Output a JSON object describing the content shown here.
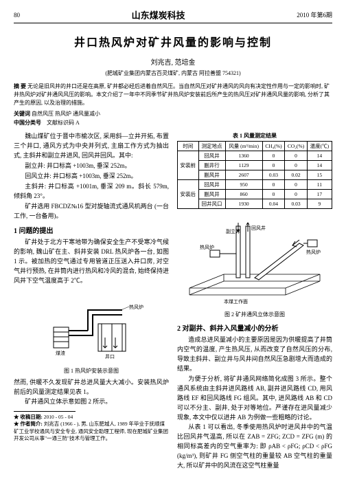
{
  "header": {
    "page": "80",
    "journal": "山东煤炭科技",
    "issue": "2010 年第6期"
  },
  "title": "井口热风炉对矿井风量的影响与控制",
  "authors": "刘兆吉, 范培金",
  "affiliation": "(肥城矿业集团内蒙古百灵煤矿, 内蒙古 阿拉善盟  754321)",
  "abstract_label": "摘  要",
  "abstract": "无论是旧风井的井口还是在高原, 矿井都必经后进着自然风压。当自然风压对矿井通风的风向有决定性作用与一定的影响时, 矿井热风炉对矿井通风风压的影响。本文介绍了一年中不同季节矿井热风炉安装前后所产生的热风压对矿井通风风量的影响, 分析了其产生的原因, 以及治理的措施。",
  "keywords_label": "关键词",
  "keywords": "自然风压   热风炉   通风量减小",
  "class_label": "中国分类号",
  "class_code": "文献标识码  A",
  "left": {
    "p1": "魏山煤矿位于晋中市榆次区, 采用斜—立井开拓, 布置三个井口, 通风方式为中央并列式, 主扇工作方式为抽出式, 主斜井和副立井进风, 回风井回风。其中:",
    "p2": "副立井: 井口标高 +1003m, 垂深 252m。",
    "p3": "回风立井: 井口标高 +1003m, 垂深 252m。",
    "p4": "主斜井: 井口标高 +1001m, 垂深 209 m。斜长 579m, 倾斜角 23°。",
    "p5": "矿井选用 FBCDZ№16 型对旋轴流式通风机两台 (一台工作, 一台备用)。",
    "h1": "1 问题的提出",
    "p6": "矿井处于北方干寒地带为确保安全生产不受寒冷气候的影响, 魏山矿在主、斜井安装 DRL 热风炉各一台, 如图 1 示。被加热的空气通过专用管道正压送入井口房, 对空气井行预热, 在井筒内进行热风和冷风的混合, 始终保持进风井下空气温度高于 2℃。",
    "fig1_caption": "图 1  热风炉安装示意图",
    "p7": "然而, 供暖不久发现矿井总进风量大大减小。安装热风炉前后的风量测定结果见表 1。",
    "p8": "矿井通风立体示意如图 2 所示。",
    "footnote_date_label": "★ 收稿日期:",
    "footnote_date": "2010 - 05 - 04",
    "footnote_author_label": "★ 作者简介:",
    "footnote_author": "刘兆吉 (1966 - ), 男, 山东肥城人, 1989 年毕业于抚顺煤矿工业学校通风与安全专业, 通风安全助理工程师, 现在肥城矿业集团开发公司从事\"一通三防\"技术与管理工作。"
  },
  "right": {
    "table_caption": "表 1  风量测定结果",
    "table": {
      "headers": [
        "时间",
        "测定地点",
        "风量 (m³/min)",
        "CH₄(%)",
        "CO₂(%)",
        "温度(℃)"
      ],
      "rows": [
        [
          "安装前",
          "回风井",
          "1360",
          "0",
          "0",
          "14"
        ],
        [
          "",
          "副井行",
          "1129",
          "0",
          "0",
          "14"
        ],
        [
          "",
          "副风井",
          "2607",
          "0.03",
          "0.02",
          "15"
        ],
        [
          "安装后",
          "回风井",
          "950",
          "0",
          "0",
          "11"
        ],
        [
          "",
          "副风井",
          "860",
          "0",
          "0",
          "17"
        ],
        [
          "",
          "回井风口",
          "1930",
          "0.04",
          "0.03",
          "9"
        ]
      ]
    },
    "fig2_caption": "图 2  矿井通风立体示意图",
    "fig2_labels": {
      "l1": "热风炉",
      "l2": "副立井",
      "l3": "回风井",
      "l4": "热风炉",
      "l5": "本煤工作面"
    },
    "h2": "2  对副井、斜井入风量减小的分析",
    "p1": "造成总进风量减小的主要原因是因为供暖提高了井筒内空气的温度, 产生热风压, 从而改变了自然风压的分布, 导致主斜井、副立井与风井间自然风压急剧增大而造成的结果。",
    "p2": "为便于分析, 将矿井通风网络简化成图 3 所示。整个通风系统由主斜井进风路线 AB, 副井进风路线 CD, 用风路线 EF 和回风路线 FG 组风。其中, 进风路线 AB 和 CD 可以不分主、副井, 处于对等地位。严谨存在进风量减少现象, 本文中仅以进井 AB 为例做一些粗略的讨论。",
    "p3": "从表 1 可以看出, 冬季使用热风炉时进风井中的气温比回风井气温高, 所以在 ZAB = ZFG; ZCD = ZFG (m) 的相同标高差内的空气重率为: 即 ρAB < ρFG; ρCD < ρFG (kg/m³), 则矿井 FG 侧空气柱的重量较 AB 空气柱的重量大, 所以矿井中的风流在这空气柱重量"
  },
  "fig1_labels": {
    "stove": "煤渣",
    "shaft": "井口",
    "fan": "热风炉"
  }
}
